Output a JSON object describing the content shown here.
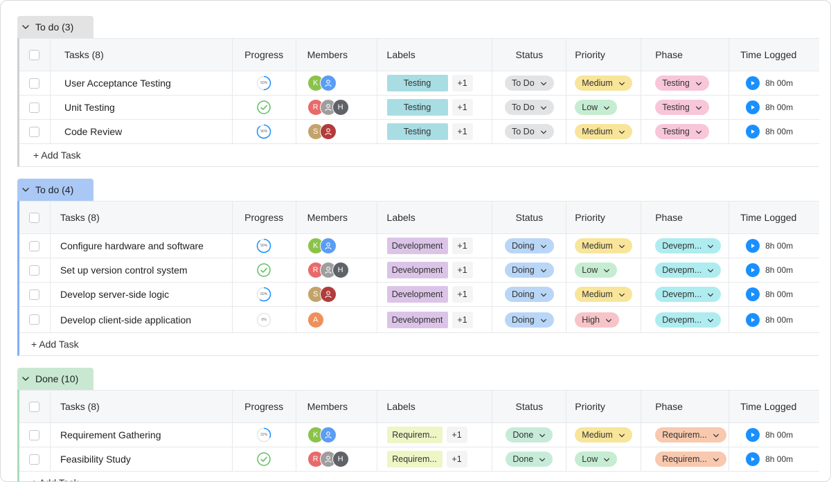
{
  "columns": {
    "progress": "Progress",
    "members": "Members",
    "labels": "Labels",
    "status": "Status",
    "priority": "Priority",
    "phase": "Phase",
    "time": "Time Logged"
  },
  "add_task": "+ Add Task",
  "groups": [
    {
      "title": "To do (3)",
      "tasks_header": "Tasks (8)",
      "colors": {
        "header": "#e3e3e4",
        "accent": "#cfd0d3"
      },
      "rows": [
        {
          "name": "User Acceptance Testing",
          "progress": {
            "text": "50%",
            "value": 0.5
          },
          "members": [
            {
              "initial": "K",
              "color": "#8bc34a"
            },
            {
              "initial": "",
              "color": "#5b9cf5",
              "icon": "user"
            }
          ],
          "label": "Testing",
          "label_more": "+1",
          "status": "To Do",
          "priority": "Medium",
          "phase": "Testing",
          "time": "8h 00m"
        },
        {
          "name": "Unit Testing",
          "progress": {
            "text": "",
            "value": 1,
            "done": true
          },
          "members": [
            {
              "initial": "R",
              "color": "#e96a6a"
            },
            {
              "initial": "",
              "color": "#9e9e9e",
              "icon": "user"
            },
            {
              "initial": "H",
              "color": "#5f6368"
            }
          ],
          "label": "Testing",
          "label_more": "+1",
          "status": "To Do",
          "priority": "Low",
          "phase": "Testing",
          "time": "8h 00m"
        },
        {
          "name": "Code Review",
          "progress": {
            "text": "90%",
            "value": 0.9
          },
          "members": [
            {
              "initial": "S",
              "color": "#c2a36a"
            },
            {
              "initial": "",
              "color": "#b23b3b",
              "icon": "user"
            }
          ],
          "label": "Testing",
          "label_more": "+1",
          "status": "To Do",
          "priority": "Medium",
          "phase": "Testing",
          "time": "8h 00m"
        }
      ]
    },
    {
      "title": "To do (4)",
      "tasks_header": "Tasks (8)",
      "colors": {
        "header": "#aac8f6",
        "accent": "#7fb0f2"
      },
      "rows": [
        {
          "name": "Configure hardware and software",
          "progress": {
            "text": "90%",
            "value": 0.9
          },
          "members": [
            {
              "initial": "K",
              "color": "#8bc34a"
            },
            {
              "initial": "",
              "color": "#5b9cf5",
              "icon": "user"
            }
          ],
          "label": "Development",
          "label_more": "+1",
          "status": "Doing",
          "priority": "Medium",
          "phase": "Devepm...",
          "time": "8h 00m"
        },
        {
          "name": "Set up version control system",
          "progress": {
            "text": "",
            "value": 1,
            "done": true
          },
          "members": [
            {
              "initial": "R",
              "color": "#e96a6a"
            },
            {
              "initial": "",
              "color": "#9e9e9e",
              "icon": "user"
            },
            {
              "initial": "H",
              "color": "#5f6368"
            }
          ],
          "label": "Development",
          "label_more": "+1",
          "status": "Doing",
          "priority": "Low",
          "phase": "Devepm...",
          "time": "8h 00m"
        },
        {
          "name": "Develop server-side logic",
          "progress": {
            "text": "60%",
            "value": 0.6
          },
          "members": [
            {
              "initial": "S",
              "color": "#c2a36a"
            },
            {
              "initial": "",
              "color": "#b23b3b",
              "icon": "user"
            }
          ],
          "label": "Development",
          "label_more": "+1",
          "status": "Doing",
          "priority": "Medium",
          "phase": "Devepm...",
          "time": "8h 00m"
        },
        {
          "name": "Develop client-side application",
          "progress": {
            "text": "0%",
            "value": 0
          },
          "members": [
            {
              "initial": "A",
              "color": "#ef8f5a"
            }
          ],
          "label": "Development",
          "label_more": "+1",
          "status": "Doing",
          "priority": "High",
          "phase": "Devepm...",
          "time": "8h 00m"
        }
      ]
    },
    {
      "title": "Done (10)",
      "tasks_header": "Tasks (8)",
      "colors": {
        "header": "#c9e8d2",
        "accent": "#a9dbb9"
      },
      "rows": [
        {
          "name": "Requirement Gathering",
          "progress": {
            "text": "32%",
            "value": 0.32
          },
          "members": [
            {
              "initial": "K",
              "color": "#8bc34a"
            },
            {
              "initial": "",
              "color": "#5b9cf5",
              "icon": "user"
            }
          ],
          "label": "Requirem...",
          "label_more": "+1",
          "status": "Done",
          "priority": "Medium",
          "phase": "Requirem...",
          "time": "8h 00m"
        },
        {
          "name": "Feasibility Study",
          "progress": {
            "text": "",
            "value": 1,
            "done": true
          },
          "members": [
            {
              "initial": "R",
              "color": "#e96a6a"
            },
            {
              "initial": "",
              "color": "#9e9e9e",
              "icon": "user"
            },
            {
              "initial": "H",
              "color": "#5f6368"
            }
          ],
          "label": "Requirem...",
          "label_more": "+1",
          "status": "Done",
          "priority": "Low",
          "phase": "Requirem...",
          "time": "8h 00m"
        }
      ]
    }
  ],
  "palette": {
    "label_testing": "#a8dde3",
    "label_development": "#dcc4e8",
    "label_requirements": "#eef6c6",
    "status_todo": "#e2e3e5",
    "status_doing": "#b9d6f7",
    "status_done": "#c7ebd9",
    "priority_medium": "#f8e59a",
    "priority_low": "#c6ecd1",
    "priority_high": "#f7c4c8",
    "phase_testing": "#f8c6d9",
    "phase_development": "#aeecf0",
    "phase_requirements": "#f8c9ae",
    "progress_ring": "#1a90ff",
    "done_check": "#5fbf5f",
    "play": "#1a90ff"
  }
}
